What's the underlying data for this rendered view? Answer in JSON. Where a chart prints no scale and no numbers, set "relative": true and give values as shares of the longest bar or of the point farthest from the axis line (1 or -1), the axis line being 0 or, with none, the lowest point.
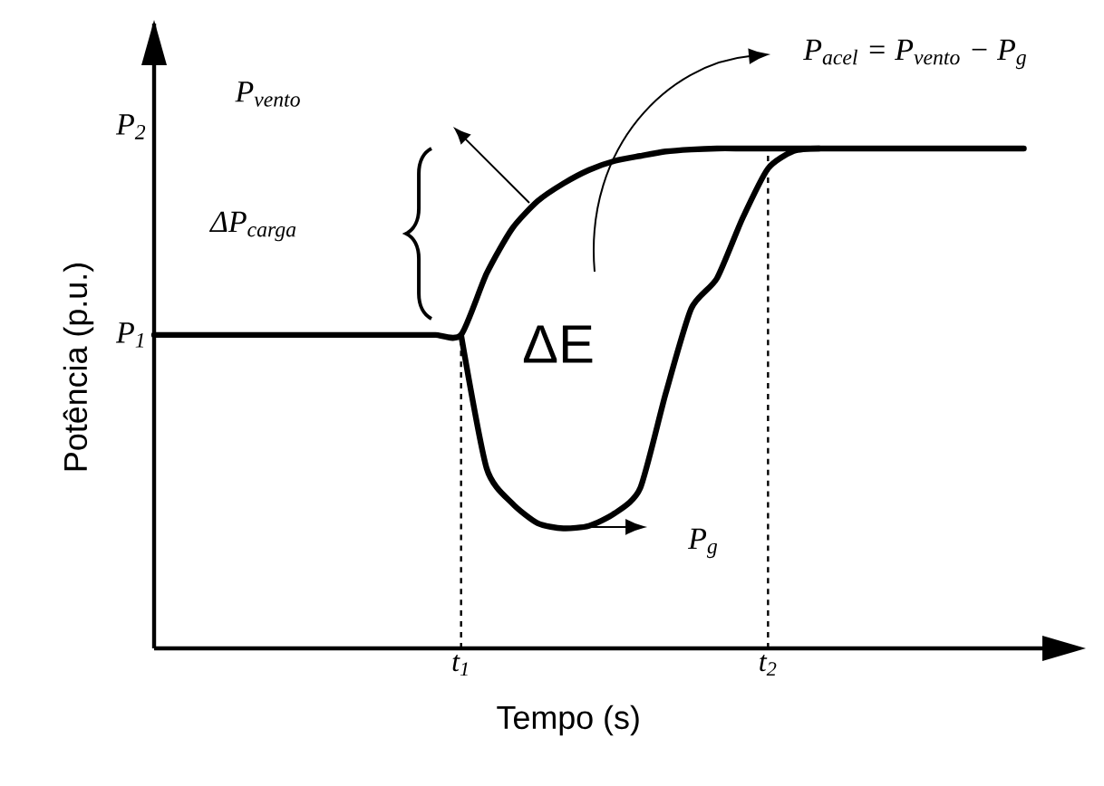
{
  "chart_data": {
    "type": "line",
    "relative": true,
    "xlabel": "Tempo (s)",
    "ylabel": "Potência (p.u.)",
    "categories": [
      null,
      null,
      null,
      null,
      null,
      null,
      null,
      null,
      null,
      null,
      null,
      null,
      "t$_{1}$",
      null,
      null,
      null,
      null,
      null,
      null,
      null,
      null,
      null,
      null,
      null,
      "t$_{2}$",
      null,
      null,
      null,
      null,
      null,
      null,
      null,
      null,
      null,
      null
    ],
    "ref_lines": [
      {
        "axis": "x",
        "value": "t$_{1}$",
        "line_style": "dashed"
      },
      {
        "axis": "x",
        "value": "t$_{2}$",
        "line_style": "dashed"
      }
    ],
    "series": [
      {
        "color": "#000000",
        "values": [
          0.627,
          0.627,
          0.627,
          0.627,
          0.627,
          0.627,
          0.627,
          0.627,
          0.627,
          0.627,
          0.627,
          0.627,
          0.627,
          0.75,
          0.84,
          0.895,
          0.93,
          0.957,
          0.975,
          0.985,
          0.994,
          0.998,
          1,
          1,
          1,
          1,
          1,
          1,
          1,
          1,
          1,
          1,
          1,
          1,
          1
        ]
      },
      {
        "color": "#000000",
        "values": [
          null,
          null,
          null,
          null,
          null,
          null,
          null,
          null,
          null,
          null,
          null,
          null,
          0.627,
          0.36,
          0.29,
          0.25,
          0.24,
          0.245,
          0.27,
          0.32,
          0.51,
          0.68,
          0.74,
          0.86,
          0.96,
          0.995,
          1,
          null,
          null,
          null,
          null,
          null,
          null,
          null,
          null
        ]
      }
    ],
    "annotations": [
      "P$_{1}$",
      "P$_{2}$",
      "ΔP$_{carga}$",
      "P$_{vento}$",
      "P$_{acel}$ = P$_{vento}$ − P$_{g}$",
      "ΔE",
      "P$_{g}$"
    ],
    "line_style": "solid",
    "marker": "none",
    "grid": false
  }
}
